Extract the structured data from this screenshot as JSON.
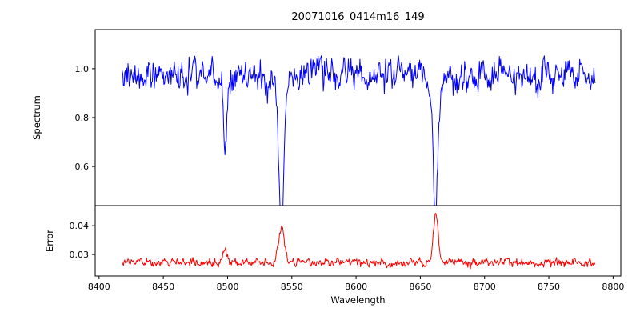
{
  "chart_data": {
    "type": "line",
    "title": "20071016_0414m16_149",
    "xlabel": "Wavelength",
    "x_range": [
      8397,
      8806
    ],
    "x_ticks": [
      8400,
      8450,
      8500,
      8550,
      8600,
      8650,
      8700,
      8750,
      8800
    ],
    "x_tick_labels": [
      "8400",
      "8450",
      "8500",
      "8550",
      "8600",
      "8650",
      "8700",
      "8750",
      "8800"
    ],
    "data_x_start": 8418,
    "data_x_end": 8786,
    "data_x_step": 0.5,
    "noise_seed": 20071016,
    "grid": false,
    "legend": "none",
    "panels": [
      {
        "name": "spectrum",
        "ylabel": "Spectrum",
        "ylim": [
          0.44,
          1.16
        ],
        "y_ticks": [
          0.6,
          0.8,
          1.0
        ],
        "y_tick_labels": [
          "0.6",
          "0.8",
          "1.0"
        ],
        "line_color": "#0000ff",
        "baseline": 0.975,
        "noise_ar": 0.5,
        "noise_sigma": 0.028,
        "noise_hf_sigma": 0.012
      },
      {
        "name": "error",
        "ylabel": "Error",
        "ylim": [
          0.0225,
          0.047
        ],
        "y_ticks": [
          0.03,
          0.04
        ],
        "y_tick_labels": [
          "0.03",
          "0.04"
        ],
        "line_color": "#ff0000",
        "baseline": 0.0272,
        "noise_ar": 0.5,
        "noise_sigma": 0.0006,
        "noise_hf_sigma": 0.0003
      }
    ],
    "absorption_lines": [
      {
        "center": 8498,
        "spectrum_depth": 0.29,
        "spectrum_sigma": 1.1,
        "spectrum_wing_depth": 0.05,
        "spectrum_wing_sigma": 3.0,
        "error_peak": 0.0045,
        "error_sigma": 2.0
      },
      {
        "center": 8542,
        "spectrum_depth": 0.5,
        "spectrum_sigma": 1.7,
        "spectrum_wing_depth": 0.1,
        "spectrum_wing_sigma": 4.5,
        "error_peak": 0.0125,
        "error_sigma": 2.2
      },
      {
        "center": 8662,
        "spectrum_depth": 0.5,
        "spectrum_sigma": 1.5,
        "spectrum_wing_depth": 0.08,
        "spectrum_wing_sigma": 4.0,
        "error_peak": 0.017,
        "error_sigma": 1.8
      }
    ],
    "line_width": 1.0
  }
}
